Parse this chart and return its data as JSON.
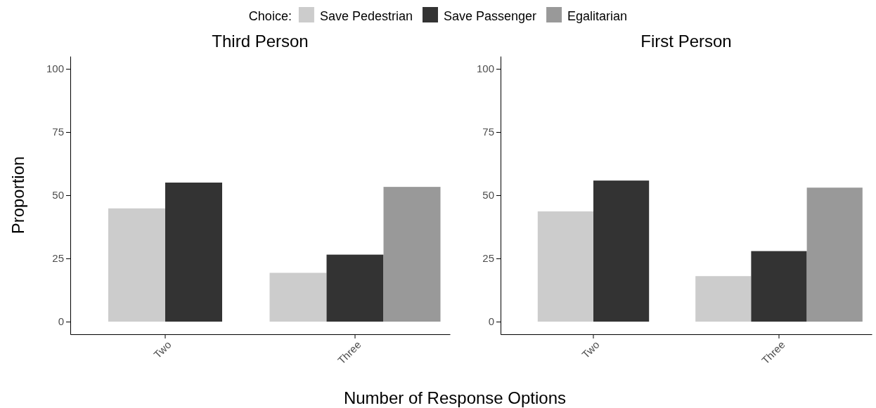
{
  "chart_data": [
    {
      "type": "bar",
      "title": "Third Person",
      "xlabel": "Number of Response Options",
      "ylabel": "Proportion",
      "legend_title": "Choice:",
      "legend": "top",
      "categories": [
        "Two",
        "Three"
      ],
      "ylim": [
        -5,
        105
      ],
      "yticks": [
        0,
        25,
        50,
        75,
        100
      ],
      "series": [
        {
          "name": "Save Pedestrian",
          "color": "#cccccc",
          "values": [
            44.8,
            19.3
          ]
        },
        {
          "name": "Save Passenger",
          "color": "#333333",
          "values": [
            55.0,
            26.5
          ]
        },
        {
          "name": "Egalitarian",
          "color": "#999999",
          "values": [
            null,
            53.3
          ]
        }
      ]
    },
    {
      "type": "bar",
      "title": "First Person",
      "categories": [
        "Two",
        "Three"
      ],
      "ylim": [
        -5,
        105
      ],
      "yticks": [
        0,
        25,
        50,
        75,
        100
      ],
      "series": [
        {
          "color": "#cccccc",
          "values": [
            43.6,
            18.0
          ]
        },
        {
          "color": "#333333",
          "values": [
            55.8,
            27.9
          ]
        },
        {
          "color": "#999999",
          "values": [
            null,
            53.0
          ]
        }
      ]
    }
  ]
}
